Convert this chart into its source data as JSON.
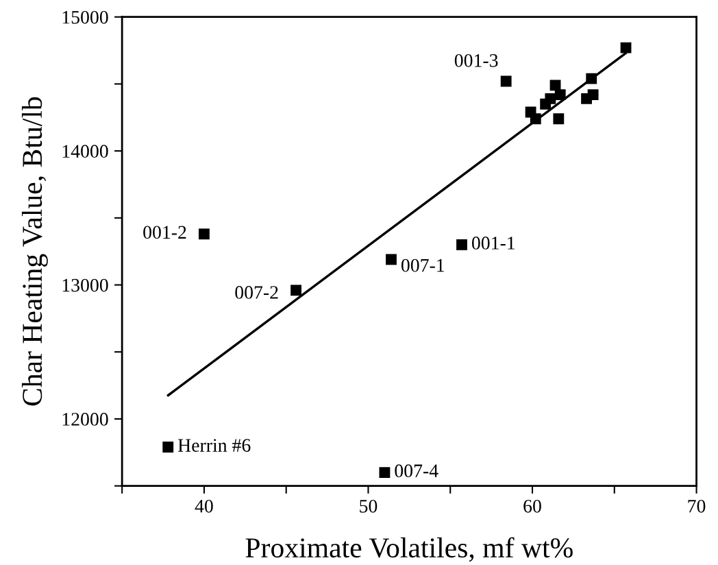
{
  "chart_data": {
    "type": "scatter",
    "xlabel": "Proximate Volatiles, mf wt%",
    "ylabel": "Char Heating Value, Btu/lb",
    "series": [
      {
        "color": "#000000",
        "marker": "square",
        "x": [
          37.8,
          51.0,
          40.0,
          45.6,
          51.4,
          55.7,
          58.4,
          61.4,
          61.7,
          61.1,
          60.8,
          59.9,
          60.2,
          61.6,
          63.6,
          63.3,
          63.7,
          65.7
        ],
        "values": [
          11790,
          11600,
          13380,
          12960,
          13190,
          13300,
          14520,
          14490,
          14420,
          14390,
          14350,
          14290,
          14240,
          14240,
          14540,
          14390,
          14420,
          14770
        ]
      },
      {
        "type": "line",
        "color": "#000000",
        "marker": "none",
        "x": [
          37.8,
          65.7
        ],
        "values": [
          12175,
          14730
        ]
      }
    ],
    "annotations": [
      {
        "text": "Herrin #6",
        "x": 37.8,
        "y": 11790
      },
      {
        "text": "007-4",
        "x": 51.0,
        "y": 11600
      },
      {
        "text": "001-2",
        "x": 40.0,
        "y": 13380
      },
      {
        "text": "007-2",
        "x": 45.6,
        "y": 12960
      },
      {
        "text": "007-1",
        "x": 51.4,
        "y": 13190
      },
      {
        "text": "001-1",
        "x": 55.7,
        "y": 13300
      },
      {
        "text": "001-3",
        "x": 58.4,
        "y": 14520
      }
    ],
    "xlim": [
      35,
      70
    ],
    "xticks": [
      {
        "value": 35,
        "label": null
      },
      40,
      {
        "value": 45,
        "label": null
      },
      50,
      {
        "value": 55,
        "label": null
      },
      60,
      {
        "value": 65,
        "label": null
      },
      70
    ],
    "ylim": [
      11500,
      15000
    ],
    "yticks": [
      {
        "value": 11500,
        "label": null
      },
      12000,
      {
        "value": 12500,
        "label": null
      },
      13000,
      {
        "value": 13500,
        "label": null
      },
      14000,
      {
        "value": 14500,
        "label": null
      },
      15000
    ],
    "grid": false,
    "legend": false
  }
}
